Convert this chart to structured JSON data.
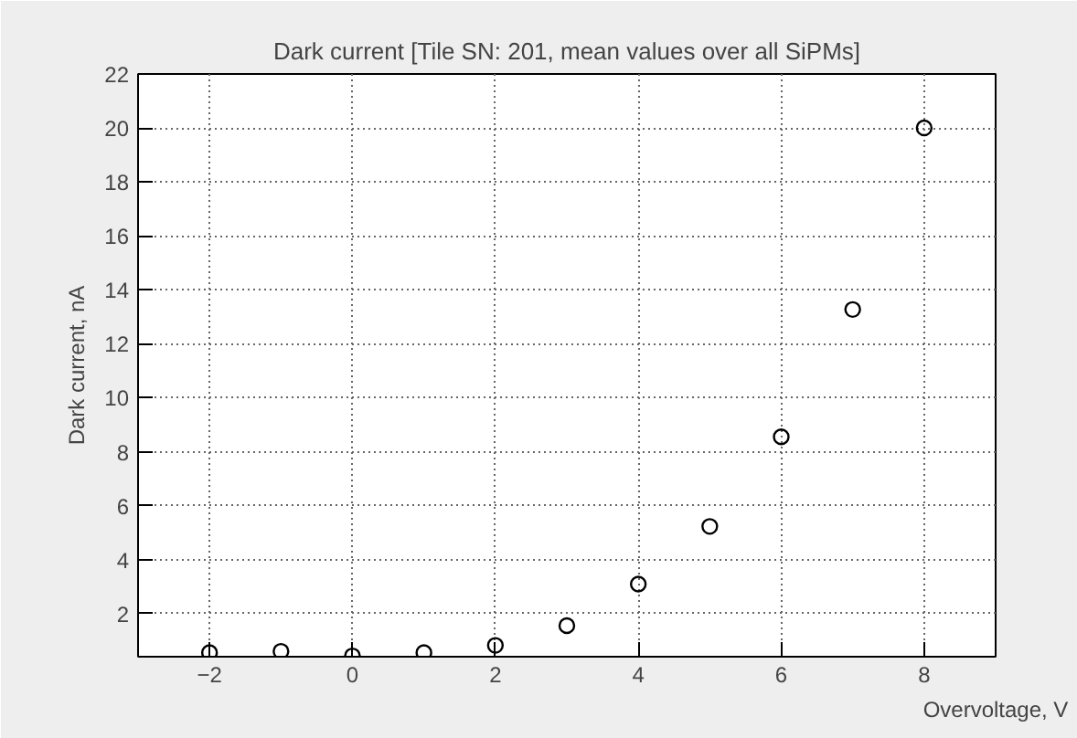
{
  "chart_data": {
    "type": "scatter",
    "title": "Dark current [Tile SN: 201, mean values over all SiPMs]",
    "xlabel": "Overvoltage, V",
    "ylabel": "Dark current, nA",
    "x": [
      -2,
      -1,
      0,
      1,
      2,
      3,
      4,
      5,
      6,
      7,
      8
    ],
    "series": [
      {
        "color": "#000000",
        "values": [
          0.55,
          0.6,
          0.43,
          0.55,
          0.82,
          1.55,
          3.09,
          5.23,
          8.55,
          13.27,
          20.0
        ]
      }
    ],
    "xlim": [
      -3,
      9
    ],
    "ylim": [
      0.4,
      22
    ],
    "xticks": [
      -2,
      0,
      2,
      4,
      6,
      8
    ],
    "yticks": [
      2,
      4,
      6,
      8,
      10,
      12,
      14,
      16,
      18,
      20,
      22
    ],
    "grid": true,
    "marker": "circle"
  }
}
